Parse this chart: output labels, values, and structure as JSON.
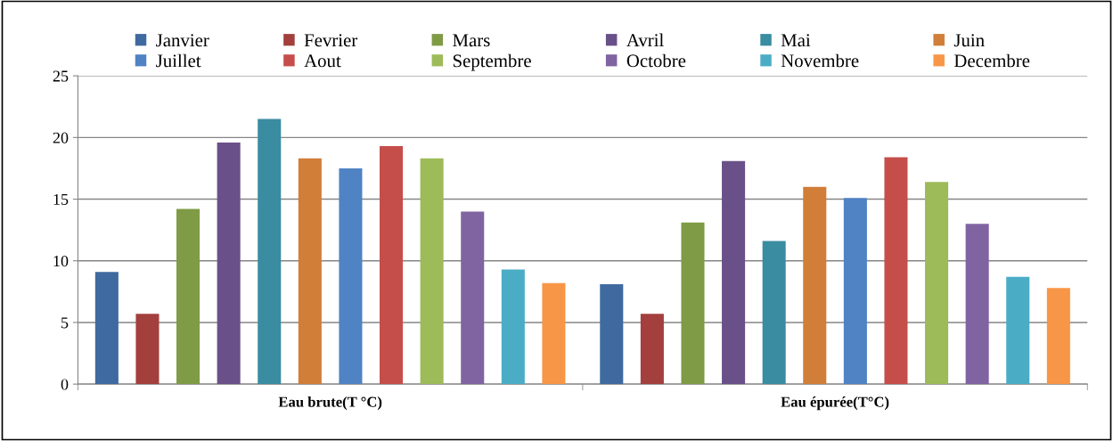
{
  "chart_data": {
    "type": "bar",
    "categories": [
      "Eau brute(T °C)",
      "Eau épurée(T°C)"
    ],
    "series": [
      {
        "name": "Janvier",
        "color": "#3f6aa0",
        "values": [
          9.1,
          8.1
        ]
      },
      {
        "name": "Fevrier",
        "color": "#a33f3d",
        "values": [
          5.7,
          5.7
        ]
      },
      {
        "name": "Mars",
        "color": "#7f9b45",
        "values": [
          14.2,
          13.1
        ]
      },
      {
        "name": "Avril",
        "color": "#6a5088",
        "values": [
          19.6,
          18.1
        ]
      },
      {
        "name": "Mai",
        "color": "#3a8ca1",
        "values": [
          21.5,
          11.6
        ]
      },
      {
        "name": "Juin",
        "color": "#d07e38",
        "values": [
          18.3,
          16.0
        ]
      },
      {
        "name": "Juillet",
        "color": "#4f83c4",
        "values": [
          17.5,
          15.1
        ]
      },
      {
        "name": "Aout",
        "color": "#c54e4b",
        "values": [
          19.3,
          18.4
        ]
      },
      {
        "name": "Septembre",
        "color": "#9dbb59",
        "values": [
          18.3,
          16.4
        ]
      },
      {
        "name": "Octobre",
        "color": "#8064a2",
        "values": [
          14.0,
          13.0
        ]
      },
      {
        "name": "Novembre",
        "color": "#4bacc6",
        "values": [
          9.3,
          8.7
        ]
      },
      {
        "name": "Decembre",
        "color": "#f79646",
        "values": [
          8.2,
          7.8
        ]
      }
    ],
    "ylim": [
      0,
      25
    ],
    "yticks": [
      0,
      5,
      10,
      15,
      20,
      25
    ],
    "grid": "y",
    "legend": "top"
  }
}
